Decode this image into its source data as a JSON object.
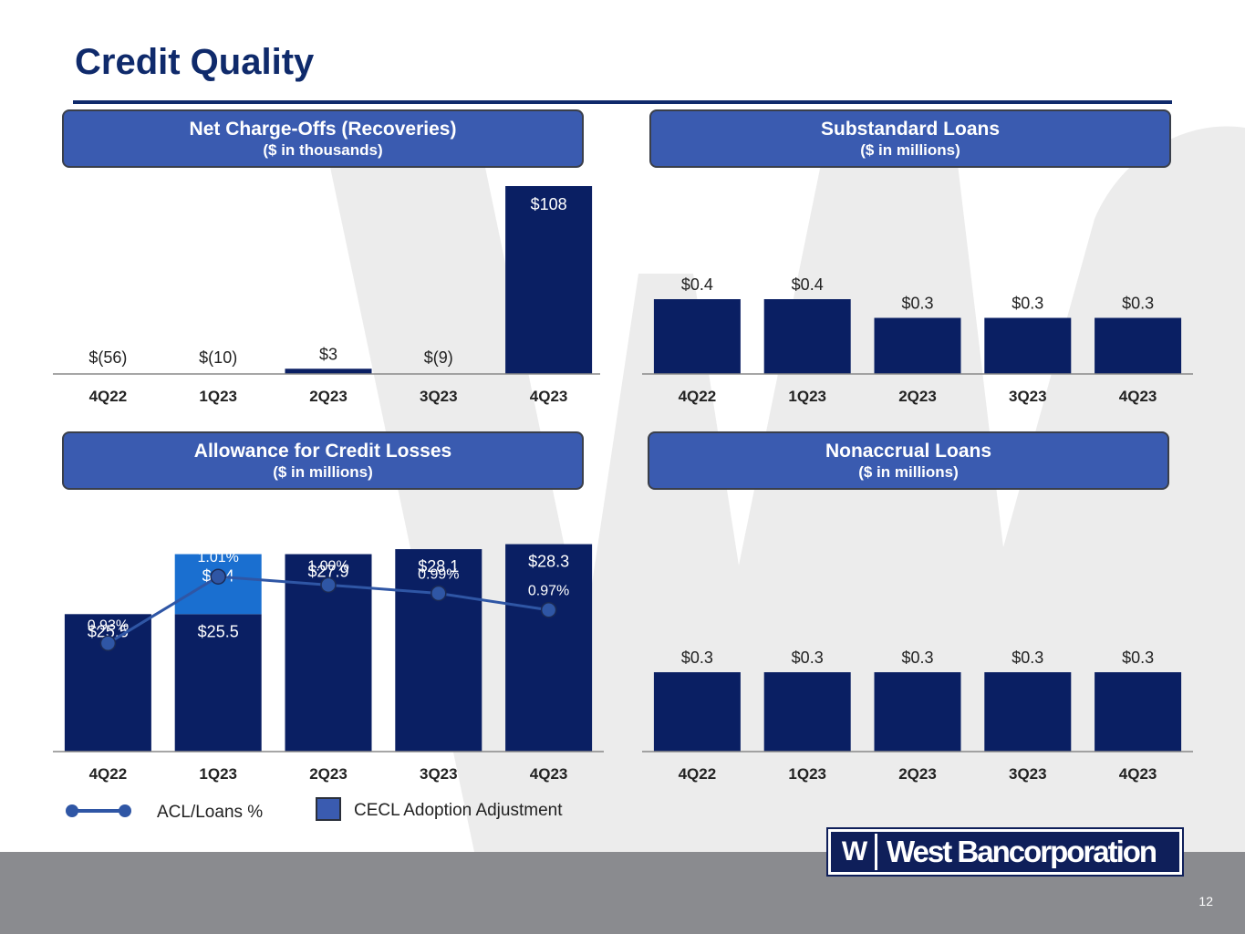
{
  "page": {
    "title": "Credit Quality",
    "page_number": "12",
    "logo_mark": "W",
    "logo_text": "West Bancorporation",
    "colors": {
      "navy": "#0f2a6b",
      "bar": "#0a1f63",
      "accent_bar": "#1a6fd0",
      "header": "#3a5bb0",
      "line": "#2f56a5"
    }
  },
  "panels": {
    "nco": {
      "title": "Net Charge-Offs (Recoveries)",
      "subtitle": "($ in thousands)"
    },
    "substandard": {
      "title": "Substandard Loans",
      "subtitle": "($ in millions)"
    },
    "acl": {
      "title": "Allowance for Credit Losses",
      "subtitle": "($ in millions)"
    },
    "nonaccrual": {
      "title": "Nonaccrual Loans",
      "subtitle": "($ in millions)"
    }
  },
  "legend": {
    "acl_label": "ACL/Loans %",
    "cecl_label": "CECL Adoption Adjustment"
  },
  "chart_data": [
    {
      "id": "nco",
      "type": "bar",
      "categories": [
        "4Q22",
        "1Q23",
        "2Q23",
        "3Q23",
        "4Q23"
      ],
      "values": [
        -56,
        -10,
        3,
        -9,
        108
      ],
      "labels": [
        "$(56)",
        "$(10)",
        "$3",
        "$(9)",
        "$108"
      ],
      "title": "Net Charge-Offs (Recoveries)",
      "subtitle": "($ in thousands)"
    },
    {
      "id": "substandard",
      "type": "bar",
      "categories": [
        "4Q22",
        "1Q23",
        "2Q23",
        "3Q23",
        "4Q23"
      ],
      "values": [
        0.4,
        0.4,
        0.3,
        0.3,
        0.3
      ],
      "labels": [
        "$0.4",
        "$0.4",
        "$0.3",
        "$0.3",
        "$0.3"
      ],
      "title": "Substandard Loans",
      "subtitle": "($ in millions)"
    },
    {
      "id": "acl",
      "type": "bar",
      "categories": [
        "4Q22",
        "1Q23",
        "2Q23",
        "3Q23",
        "4Q23"
      ],
      "series": [
        {
          "values": [
            25.5,
            25.5,
            27.9,
            28.1,
            28.3
          ],
          "labels": [
            "$25.5",
            "$25.5",
            "$27.9",
            "$28.1",
            "$28.3"
          ]
        },
        {
          "name": "CECL Adoption Adjustment",
          "values": [
            0,
            2.4,
            0,
            0,
            0
          ],
          "labels": [
            "",
            "$2.4",
            "",
            "",
            ""
          ]
        }
      ],
      "line": {
        "name": "ACL/Loans %",
        "values": [
          0.93,
          1.01,
          1.0,
          0.99,
          0.97
        ],
        "labels": [
          "0.93%",
          "1.01%",
          "1.00%",
          "0.99%",
          "0.97%"
        ]
      },
      "title": "Allowance for Credit Losses",
      "subtitle": "($ in millions)"
    },
    {
      "id": "nonaccrual",
      "type": "bar",
      "categories": [
        "4Q22",
        "1Q23",
        "2Q23",
        "3Q23",
        "4Q23"
      ],
      "values": [
        0.3,
        0.3,
        0.3,
        0.3,
        0.3
      ],
      "labels": [
        "$0.3",
        "$0.3",
        "$0.3",
        "$0.3",
        "$0.3"
      ],
      "title": "Nonaccrual Loans",
      "subtitle": "($ in millions)"
    }
  ]
}
